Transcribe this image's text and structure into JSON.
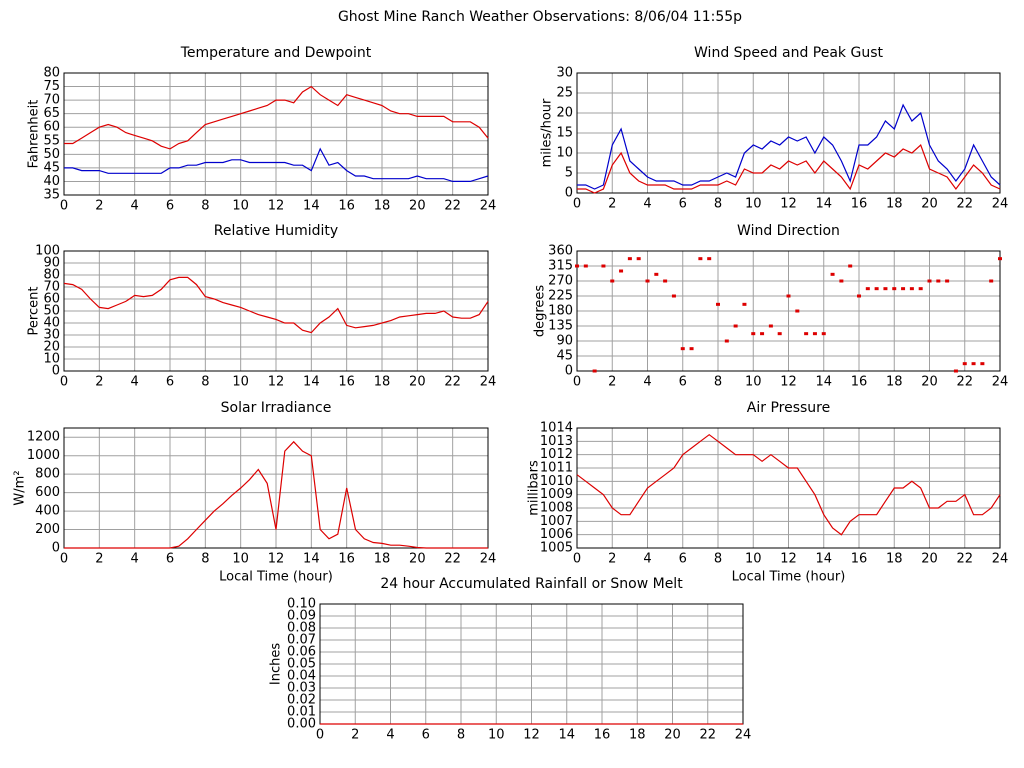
{
  "title": "Ghost Mine Ranch Weather Observations: 8/06/04 11:55p",
  "chart_data": [
    {
      "type": "line",
      "title": "Temperature and Dewpoint",
      "ylabel": "Fahrenheit",
      "grid": true,
      "x": [
        0,
        0.5,
        1,
        1.5,
        2,
        2.5,
        3,
        3.5,
        4,
        4.5,
        5,
        5.5,
        6,
        6.5,
        7,
        7.5,
        8,
        8.5,
        9,
        9.5,
        10,
        10.5,
        11,
        11.5,
        12,
        12.5,
        13,
        13.5,
        14,
        14.5,
        15,
        15.5,
        16,
        16.5,
        17,
        17.5,
        18,
        18.5,
        19,
        19.5,
        20,
        20.5,
        21,
        21.5,
        22,
        22.5,
        23,
        23.5,
        24
      ],
      "series": [
        {
          "color": "#dd0000",
          "values": [
            54,
            54,
            56,
            58,
            60,
            61,
            60,
            58,
            57,
            56,
            55,
            53,
            52,
            54,
            55,
            58,
            61,
            62,
            63,
            64,
            65,
            66,
            67,
            68,
            70,
            70,
            69,
            73,
            75,
            72,
            70,
            68,
            72,
            71,
            70,
            69,
            68,
            66,
            65,
            65,
            64,
            64,
            64,
            64,
            62,
            62,
            62,
            60,
            56
          ]
        },
        {
          "color": "#0000cc",
          "values": [
            45,
            45,
            44,
            44,
            44,
            43,
            43,
            43,
            43,
            43,
            43,
            43,
            45,
            45,
            46,
            46,
            47,
            47,
            47,
            48,
            48,
            47,
            47,
            47,
            47,
            47,
            46,
            46,
            44,
            52,
            46,
            47,
            44,
            42,
            42,
            41,
            41,
            41,
            41,
            41,
            42,
            41,
            41,
            41,
            40,
            40,
            40,
            41,
            42
          ]
        }
      ],
      "xlim": [
        0,
        24
      ],
      "xticks": [
        0,
        2,
        4,
        6,
        8,
        10,
        12,
        14,
        16,
        18,
        20,
        22,
        24
      ],
      "ylim": [
        35,
        80
      ],
      "yticks": [
        35,
        40,
        45,
        50,
        55,
        60,
        65,
        70,
        75,
        80
      ]
    },
    {
      "type": "line",
      "title": "Wind Speed and Peak Gust",
      "ylabel": "miles/hour",
      "grid": true,
      "x": [
        0,
        0.5,
        1,
        1.5,
        2,
        2.5,
        3,
        3.5,
        4,
        4.5,
        5,
        5.5,
        6,
        6.5,
        7,
        7.5,
        8,
        8.5,
        9,
        9.5,
        10,
        10.5,
        11,
        11.5,
        12,
        12.5,
        13,
        13.5,
        14,
        14.5,
        15,
        15.5,
        16,
        16.5,
        17,
        17.5,
        18,
        18.5,
        19,
        19.5,
        20,
        20.5,
        21,
        21.5,
        22,
        22.5,
        23,
        23.5,
        24
      ],
      "series": [
        {
          "color": "#0000cc",
          "values": [
            2,
            2,
            1,
            2,
            12,
            16,
            8,
            6,
            4,
            3,
            3,
            3,
            2,
            2,
            3,
            3,
            4,
            5,
            4,
            10,
            12,
            11,
            13,
            12,
            14,
            13,
            14,
            10,
            14,
            12,
            8,
            3,
            12,
            12,
            14,
            18,
            16,
            22,
            18,
            20,
            12,
            8,
            6,
            3,
            6,
            12,
            8,
            4,
            2
          ]
        },
        {
          "color": "#dd0000",
          "values": [
            1,
            1,
            0,
            1,
            7,
            10,
            5,
            3,
            2,
            2,
            2,
            1,
            1,
            1,
            2,
            2,
            2,
            3,
            2,
            6,
            5,
            5,
            7,
            6,
            8,
            7,
            8,
            5,
            8,
            6,
            4,
            1,
            7,
            6,
            8,
            10,
            9,
            11,
            10,
            12,
            6,
            5,
            4,
            1,
            4,
            7,
            5,
            2,
            1
          ]
        }
      ],
      "xlim": [
        0,
        24
      ],
      "xticks": [
        0,
        2,
        4,
        6,
        8,
        10,
        12,
        14,
        16,
        18,
        20,
        22,
        24
      ],
      "ylim": [
        0,
        30
      ],
      "yticks": [
        0,
        5,
        10,
        15,
        20,
        25,
        30
      ]
    },
    {
      "type": "line",
      "title": "Relative Humidity",
      "ylabel": "Percent",
      "grid": true,
      "x": [
        0,
        0.5,
        1,
        1.5,
        2,
        2.5,
        3,
        3.5,
        4,
        4.5,
        5,
        5.5,
        6,
        6.5,
        7,
        7.5,
        8,
        8.5,
        9,
        9.5,
        10,
        10.5,
        11,
        11.5,
        12,
        12.5,
        13,
        13.5,
        14,
        14.5,
        15,
        15.5,
        16,
        16.5,
        17,
        17.5,
        18,
        18.5,
        19,
        19.5,
        20,
        20.5,
        21,
        21.5,
        22,
        22.5,
        23,
        23.5,
        24
      ],
      "series": [
        {
          "color": "#dd0000",
          "values": [
            73,
            72,
            68,
            60,
            53,
            52,
            55,
            58,
            63,
            62,
            63,
            68,
            76,
            78,
            78,
            72,
            62,
            60,
            57,
            55,
            53,
            50,
            47,
            45,
            43,
            40,
            40,
            34,
            32,
            40,
            45,
            52,
            38,
            36,
            37,
            38,
            40,
            42,
            45,
            46,
            47,
            48,
            48,
            50,
            45,
            44,
            44,
            47,
            58
          ]
        }
      ],
      "xlim": [
        0,
        24
      ],
      "xticks": [
        0,
        2,
        4,
        6,
        8,
        10,
        12,
        14,
        16,
        18,
        20,
        22,
        24
      ],
      "ylim": [
        0,
        100
      ],
      "yticks": [
        0,
        10,
        20,
        30,
        40,
        50,
        60,
        70,
        80,
        90,
        100
      ]
    },
    {
      "type": "scatter",
      "title": "Wind Direction",
      "ylabel": "degrees",
      "grid": true,
      "x": [
        0,
        0.5,
        1,
        1.5,
        2,
        2.5,
        3,
        3.5,
        4,
        4.5,
        5,
        5.5,
        6,
        6.5,
        7,
        7.5,
        8,
        8.5,
        9,
        9.5,
        10,
        10.5,
        11,
        11.5,
        12,
        12.5,
        13,
        13.5,
        14,
        14.5,
        15,
        15.5,
        16,
        16.5,
        17,
        17.5,
        18,
        18.5,
        19,
        19.5,
        20,
        20.5,
        21,
        21.5,
        22,
        22.5,
        23,
        23.5,
        24
      ],
      "series": [
        {
          "color": "#dd0000",
          "values": [
            315,
            315,
            0,
            315,
            270,
            300,
            337,
            337,
            270,
            290,
            270,
            225,
            67,
            67,
            337,
            337,
            200,
            90,
            135,
            200,
            112,
            112,
            135,
            112,
            225,
            180,
            112,
            112,
            112,
            290,
            270,
            315,
            225,
            247,
            247,
            247,
            247,
            247,
            247,
            247,
            270,
            270,
            270,
            0,
            22,
            22,
            22,
            270,
            337
          ]
        }
      ],
      "xlim": [
        0,
        24
      ],
      "xticks": [
        0,
        2,
        4,
        6,
        8,
        10,
        12,
        14,
        16,
        18,
        20,
        22,
        24
      ],
      "ylim": [
        0,
        360
      ],
      "yticks": [
        0,
        45,
        90,
        135,
        180,
        225,
        270,
        315,
        360
      ]
    },
    {
      "type": "line",
      "title": "Solar Irradiance",
      "ylabel": "W/m²",
      "xlabel": "Local Time (hour)",
      "grid": true,
      "x": [
        0,
        0.5,
        1,
        1.5,
        2,
        2.5,
        3,
        3.5,
        4,
        4.5,
        5,
        5.5,
        6,
        6.5,
        7,
        7.5,
        8,
        8.5,
        9,
        9.5,
        10,
        10.5,
        11,
        11.5,
        12,
        12.5,
        13,
        13.5,
        14,
        14.5,
        15,
        15.5,
        16,
        16.5,
        17,
        17.5,
        18,
        18.5,
        19,
        19.5,
        20,
        20.5,
        21,
        21.5,
        22,
        22.5,
        23,
        23.5,
        24
      ],
      "series": [
        {
          "color": "#dd0000",
          "values": [
            0,
            0,
            0,
            0,
            0,
            0,
            0,
            0,
            0,
            0,
            0,
            0,
            0,
            20,
            100,
            200,
            300,
            400,
            480,
            570,
            650,
            740,
            850,
            700,
            200,
            1050,
            1150,
            1050,
            1000,
            200,
            100,
            150,
            650,
            200,
            100,
            60,
            50,
            30,
            30,
            20,
            5,
            0,
            0,
            0,
            0,
            0,
            0,
            0,
            0
          ]
        }
      ],
      "xlim": [
        0,
        24
      ],
      "xticks": [
        0,
        2,
        4,
        6,
        8,
        10,
        12,
        14,
        16,
        18,
        20,
        22,
        24
      ],
      "ylim": [
        0,
        1300
      ],
      "yticks": [
        0,
        200,
        400,
        600,
        800,
        1000,
        1200
      ]
    },
    {
      "type": "line",
      "title": "Air Pressure",
      "ylabel": "millibars",
      "xlabel": "Local Time (hour)",
      "grid": true,
      "x": [
        0,
        0.5,
        1,
        1.5,
        2,
        2.5,
        3,
        3.5,
        4,
        4.5,
        5,
        5.5,
        6,
        6.5,
        7,
        7.5,
        8,
        8.5,
        9,
        9.5,
        10,
        10.5,
        11,
        11.5,
        12,
        12.5,
        13,
        13.5,
        14,
        14.5,
        15,
        15.5,
        16,
        16.5,
        17,
        17.5,
        18,
        18.5,
        19,
        19.5,
        20,
        20.5,
        21,
        21.5,
        22,
        22.5,
        23,
        23.5,
        24
      ],
      "series": [
        {
          "color": "#dd0000",
          "values": [
            1010.5,
            1010,
            1009.5,
            1009,
            1008,
            1007.5,
            1007.5,
            1008.5,
            1009.5,
            1010,
            1010.5,
            1011,
            1012,
            1012.5,
            1013,
            1013.5,
            1013,
            1012.5,
            1012,
            1012,
            1012,
            1011.5,
            1012,
            1011.5,
            1011,
            1011,
            1010,
            1009,
            1007.5,
            1006.5,
            1006,
            1007,
            1007.5,
            1007.5,
            1007.5,
            1008.5,
            1009.5,
            1009.5,
            1010,
            1009.5,
            1008,
            1008,
            1008.5,
            1008.5,
            1009,
            1007.5,
            1007.5,
            1008,
            1009
          ]
        }
      ],
      "xlim": [
        0,
        24
      ],
      "xticks": [
        0,
        2,
        4,
        6,
        8,
        10,
        12,
        14,
        16,
        18,
        20,
        22,
        24
      ],
      "ylim": [
        1005,
        1014
      ],
      "yticks": [
        1005,
        1006,
        1007,
        1008,
        1009,
        1010,
        1011,
        1012,
        1013,
        1014
      ]
    },
    {
      "type": "line",
      "title": "24 hour Accumulated Rainfall or Snow Melt",
      "ylabel": "Inches",
      "grid": true,
      "x": [
        0,
        24
      ],
      "series": [
        {
          "color": "#dd0000",
          "values": [
            0,
            0
          ]
        }
      ],
      "xlim": [
        0,
        24
      ],
      "xticks": [
        0,
        2,
        4,
        6,
        8,
        10,
        12,
        14,
        16,
        18,
        20,
        22,
        24
      ],
      "ylim": [
        0,
        0.1
      ],
      "yticks": [
        {
          "value": 0,
          "label": "0.00"
        },
        0.01,
        0.02,
        0.03,
        0.04,
        0.05,
        0.06,
        0.07,
        0.08,
        0.09,
        {
          "value": 0.1,
          "label": "0.10"
        }
      ]
    }
  ]
}
